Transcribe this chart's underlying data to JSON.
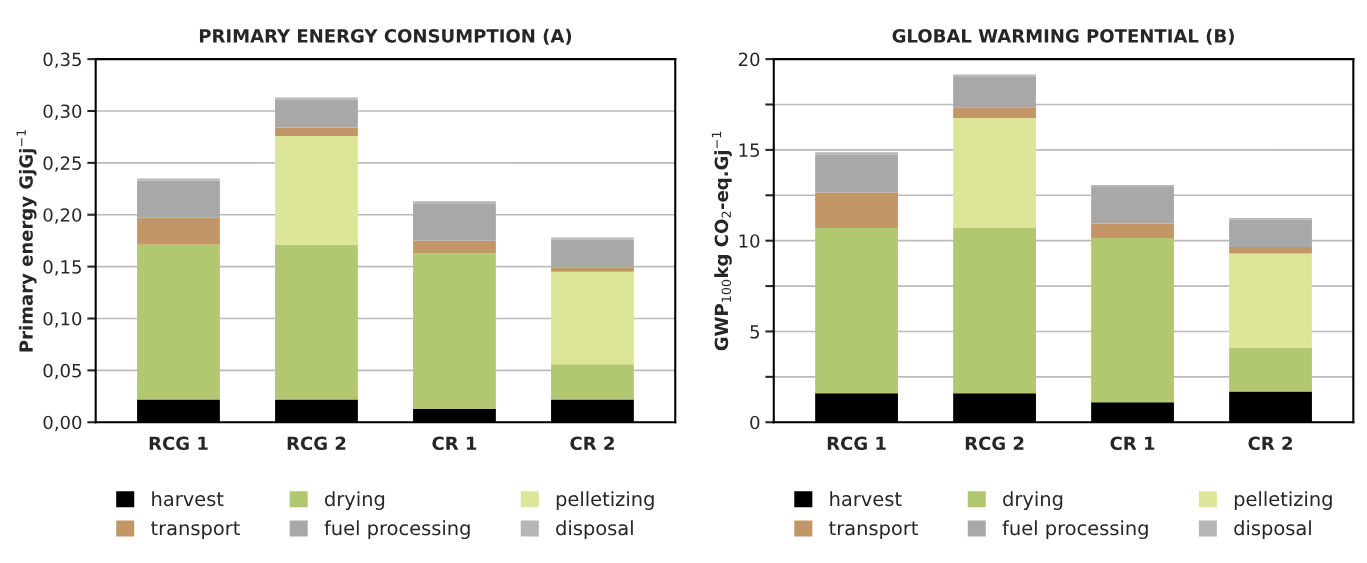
{
  "chart_data": [
    {
      "type": "bar",
      "stacked": true,
      "title": "PRIMARY ENERGY CONSUMPTION (A)",
      "ylabel": "Primary energy GjGj$^{−1}$",
      "categories": [
        "RCG 1",
        "RCG 2",
        "CR 1",
        "CR 2"
      ],
      "series": [
        {
          "name": "harvest",
          "color": "#000000",
          "values": [
            0.022,
            0.022,
            0.013,
            0.022
          ]
        },
        {
          "name": "drying",
          "color": "#b1c770",
          "values": [
            0.149,
            0.149,
            0.15,
            0.034
          ]
        },
        {
          "name": "pelletizing",
          "color": "#dde698",
          "values": [
            0,
            0.105,
            0,
            0.089
          ]
        },
        {
          "name": "transport",
          "color": "#c39668",
          "values": [
            0.026,
            0.008,
            0.012,
            0.004
          ]
        },
        {
          "name": "fuel processing",
          "color": "#a7a8a7",
          "values": [
            0.036,
            0.027,
            0.036,
            0.027
          ]
        },
        {
          "name": "disposal",
          "color": "#b5b6b5",
          "values": [
            0.002,
            0.002,
            0.002,
            0.002
          ]
        }
      ],
      "ylim": [
        0,
        0.35
      ],
      "yticks": [
        {
          "value": 0,
          "label": "0,00"
        },
        {
          "value": 0.05,
          "label": "0,05"
        },
        {
          "value": 0.1,
          "label": "0,10"
        },
        {
          "value": 0.15,
          "label": "0,15"
        },
        {
          "value": 0.2,
          "label": "0,20"
        },
        {
          "value": 0.25,
          "label": "0,25"
        },
        {
          "value": 0.3,
          "label": "0,30"
        },
        {
          "value": 0.35,
          "label": "0,35"
        }
      ],
      "grid": "y",
      "legend": "bottom"
    },
    {
      "type": "bar",
      "stacked": true,
      "title": "GLOBAL WARMING POTENTIAL (B)",
      "ylabel": "GWP$_{100}$kg CO$_{2}$-eq.Gj$^{−1}$",
      "categories": [
        "RCG 1",
        "RCG 2",
        "CR 1",
        "CR 2"
      ],
      "series": [
        {
          "name": "harvest",
          "color": "#000000",
          "values": [
            1.6,
            1.6,
            1.1,
            1.7
          ]
        },
        {
          "name": "drying",
          "color": "#b1c770",
          "values": [
            9.1,
            9.1,
            9.05,
            2.4
          ]
        },
        {
          "name": "pelletizing",
          "color": "#dde698",
          "values": [
            0,
            6.05,
            0,
            5.2
          ]
        },
        {
          "name": "transport",
          "color": "#c39668",
          "values": [
            1.95,
            0.6,
            0.8,
            0.35
          ]
        },
        {
          "name": "fuel processing",
          "color": "#a7a8a7",
          "values": [
            2.1,
            1.7,
            2.0,
            1.5
          ]
        },
        {
          "name": "disposal",
          "color": "#b5b6b5",
          "values": [
            0.12,
            0.1,
            0.12,
            0.1
          ]
        }
      ],
      "ylim": [
        0,
        20
      ],
      "yticks": [
        0,
        {
          "value": 2.5,
          "label": null
        },
        5,
        {
          "value": 7.5,
          "label": null
        },
        10,
        {
          "value": 12.5,
          "label": null
        },
        15,
        {
          "value": 17.5,
          "label": null
        },
        20
      ],
      "grid": "y",
      "legend": "bottom"
    }
  ]
}
